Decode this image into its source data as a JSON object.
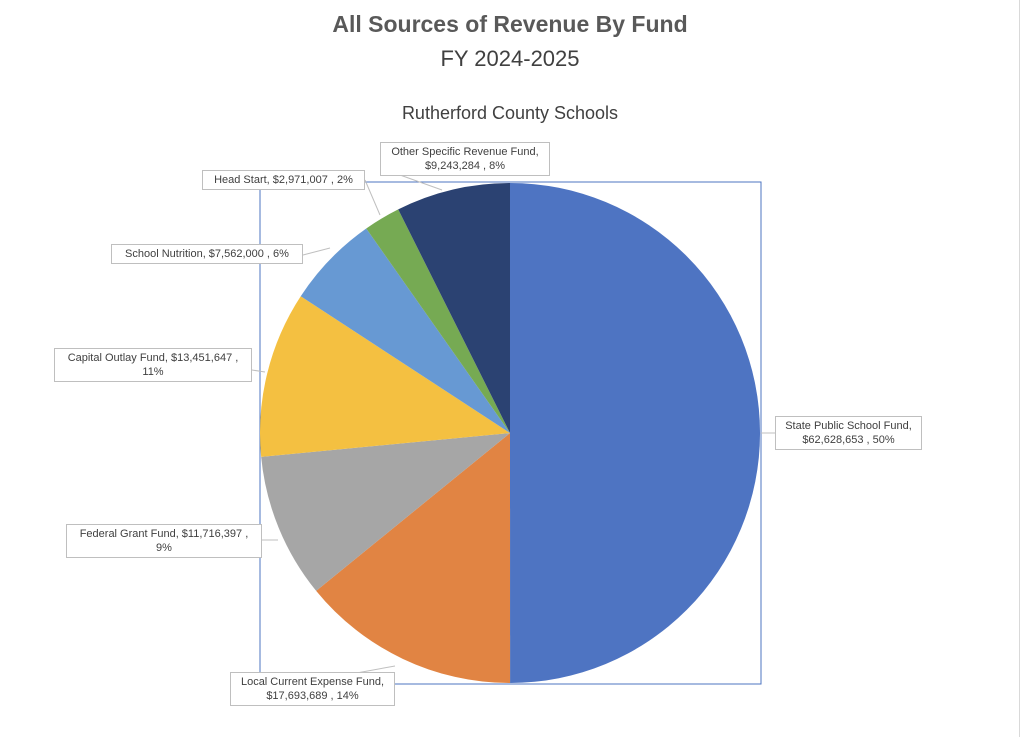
{
  "chart_title": "All Sources of Revenue By Fund",
  "chart_subtitle": "FY 2024-2025",
  "chart_caption": "Rutherford County Schools",
  "chart_data": {
    "type": "pie",
    "title": "All Sources of Revenue By Fund",
    "subtitle": "FY 2024-2025",
    "slices": [
      {
        "name": "State Public School Fund",
        "value": 62628653,
        "label": "State Public School Fund, $62,628,653 , 50%",
        "color": "#4e74c2"
      },
      {
        "name": "Local Current Expense Fund",
        "value": 17693689,
        "label": "Local Current Expense Fund, $17,693,689 , 14%",
        "color": "#e18443"
      },
      {
        "name": "Federal Grant Fund",
        "value": 11716397,
        "label": "Federal Grant Fund, $11,716,397 , 9%",
        "color": "#a6a6a6"
      },
      {
        "name": "Capital Outlay Fund",
        "value": 13451647,
        "label": "Capital Outlay Fund, $13,451,647 , 11%",
        "color": "#f4c041"
      },
      {
        "name": "School Nutrition",
        "value": 7562000,
        "label": "School Nutrition, $7,562,000 , 6%",
        "color": "#6799d3"
      },
      {
        "name": "Head Start",
        "value": 2971007,
        "label": "Head Start, $2,971,007 , 2%",
        "color": "#76aa53"
      },
      {
        "name": "Other Specific Revenue Fund",
        "value": 9243284,
        "label": "Other Specific Revenue Fund, $9,243,284 , 8%",
        "color": "#2b4272"
      }
    ],
    "legend": "none",
    "data_labels": "outside with leader lines"
  },
  "labels": {
    "state_line1": "State Public School Fund,",
    "state_line2": "$62,628,653 , 50%",
    "local_line1": "Local Current Expense Fund,",
    "local_line2": "$17,693,689 , 14%",
    "federal_line1": "Federal Grant Fund, $11,716,397 ,",
    "federal_line2": "9%",
    "capital_line1": "Capital Outlay Fund, $13,451,647 ,",
    "capital_line2": "11%",
    "nutrition_line1": "School Nutrition, $7,562,000 , 6%",
    "headstart_line1": "Head Start, $2,971,007 , 2%",
    "other_line1": "Other Specific Revenue Fund,",
    "other_line2": "$9,243,284 , 8%"
  }
}
